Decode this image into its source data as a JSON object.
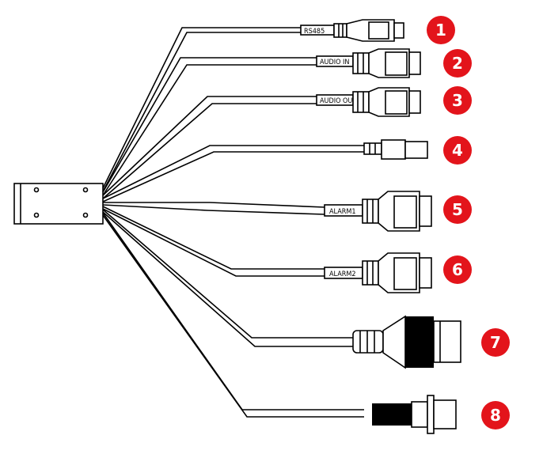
{
  "labels": {
    "rs485": "RS485",
    "audio_in": "AUDIO IN",
    "audio_out": "AUDIO OUT",
    "alarm1": "ALARM1",
    "alarm2": "ALARM2"
  },
  "badges": [
    "1",
    "2",
    "3",
    "4",
    "5",
    "6",
    "7",
    "8"
  ],
  "colors": {
    "badge": "#e3141b",
    "line": "#000000"
  }
}
